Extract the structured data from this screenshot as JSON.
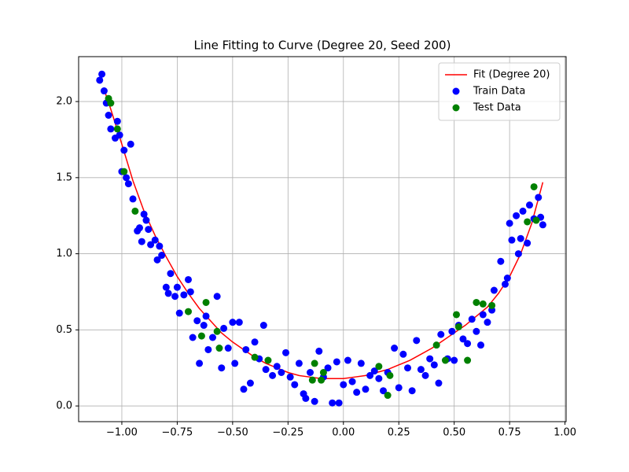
{
  "chart_data": {
    "type": "scatter",
    "title": "Line Fitting to Curve (Degree 20, Seed 200)",
    "xlim": [
      -1.195,
      1.005
    ],
    "ylim": [
      -0.103,
      2.295
    ],
    "xticks": [
      {
        "value": -1,
        "label": "−1.00"
      },
      {
        "value": -0.75,
        "label": "−0.75"
      },
      {
        "value": -0.5,
        "label": "−0.50"
      },
      {
        "value": -0.25,
        "label": "−0.25"
      },
      {
        "value": 0,
        "label": "0.00"
      },
      {
        "value": 0.25,
        "label": "0.25"
      },
      {
        "value": 0.5,
        "label": "0.50"
      },
      {
        "value": 0.75,
        "label": "0.75"
      },
      {
        "value": 1,
        "label": "1.00"
      }
    ],
    "yticks": [
      {
        "value": 0,
        "label": "0.0"
      },
      0.5,
      {
        "value": 1,
        "label": "1.0"
      },
      1.5,
      {
        "value": 2,
        "label": "2.0"
      }
    ],
    "grid": true,
    "legend": "upper right",
    "series": [
      {
        "name": "Fit (Degree 20)",
        "type": "line",
        "color": "#ff0000",
        "x": [
          -1.08,
          -1.05,
          -1.0,
          -0.95,
          -0.9,
          -0.85,
          -0.8,
          -0.75,
          -0.7,
          -0.65,
          -0.6,
          -0.55,
          -0.5,
          -0.45,
          -0.4,
          -0.35,
          -0.3,
          -0.25,
          -0.2,
          -0.15,
          -0.1,
          -0.05,
          0,
          0.05,
          0.1,
          0.15,
          0.2,
          0.25,
          0.3,
          0.35,
          0.4,
          0.45,
          0.5,
          0.55,
          0.6,
          0.65,
          0.7,
          0.75,
          0.8,
          0.85,
          0.9
        ],
        "values": [
          2.08,
          1.95,
          1.72,
          1.48,
          1.28,
          1.12,
          0.98,
          0.85,
          0.74,
          0.64,
          0.56,
          0.48,
          0.42,
          0.37,
          0.32,
          0.28,
          0.25,
          0.22,
          0.2,
          0.19,
          0.18,
          0.18,
          0.18,
          0.19,
          0.2,
          0.22,
          0.24,
          0.27,
          0.3,
          0.34,
          0.38,
          0.43,
          0.48,
          0.53,
          0.59,
          0.65,
          0.74,
          0.85,
          1.0,
          1.2,
          1.47
        ]
      },
      {
        "name": "Train Data",
        "type": "scatter",
        "color": "#0000ff",
        "x": [
          -1.09,
          -1.1,
          -1.08,
          -1.07,
          -1.06,
          -1.05,
          -1.03,
          -1.02,
          -1.01,
          -1.0,
          -0.99,
          -0.98,
          -0.97,
          -0.96,
          -0.95,
          -0.93,
          -0.92,
          -0.91,
          -0.9,
          -0.89,
          -0.88,
          -0.87,
          -0.85,
          -0.84,
          -0.83,
          -0.82,
          -0.8,
          -0.79,
          -0.78,
          -0.76,
          -0.75,
          -0.74,
          -0.72,
          -0.7,
          -0.69,
          -0.68,
          -0.66,
          -0.65,
          -0.63,
          -0.62,
          -0.61,
          -0.59,
          -0.57,
          -0.55,
          -0.54,
          -0.52,
          -0.5,
          -0.49,
          -0.47,
          -0.45,
          -0.44,
          -0.42,
          -0.4,
          -0.38,
          -0.36,
          -0.35,
          -0.32,
          -0.3,
          -0.28,
          -0.26,
          -0.24,
          -0.22,
          -0.2,
          -0.18,
          -0.17,
          -0.15,
          -0.13,
          -0.11,
          -0.09,
          -0.07,
          -0.05,
          -0.03,
          -0.02,
          0.0,
          0.02,
          0.04,
          0.06,
          0.08,
          0.1,
          0.12,
          0.14,
          0.16,
          0.18,
          0.2,
          0.23,
          0.25,
          0.27,
          0.29,
          0.31,
          0.33,
          0.35,
          0.37,
          0.39,
          0.41,
          0.43,
          0.44,
          0.47,
          0.49,
          0.5,
          0.52,
          0.54,
          0.56,
          0.58,
          0.6,
          0.62,
          0.63,
          0.65,
          0.67,
          0.68,
          0.71,
          0.73,
          0.74,
          0.75,
          0.76,
          0.78,
          0.79,
          0.8,
          0.81,
          0.83,
          0.84,
          0.86,
          0.88,
          0.89,
          0.9
        ],
        "values": [
          2.18,
          2.14,
          2.07,
          1.99,
          1.91,
          1.82,
          1.76,
          1.87,
          1.78,
          1.54,
          1.68,
          1.5,
          1.46,
          1.72,
          1.36,
          1.15,
          1.17,
          1.08,
          1.26,
          1.22,
          1.16,
          1.06,
          1.09,
          0.96,
          1.05,
          0.99,
          0.78,
          0.74,
          0.87,
          0.72,
          0.78,
          0.61,
          0.73,
          0.83,
          0.75,
          0.45,
          0.56,
          0.28,
          0.53,
          0.59,
          0.37,
          0.45,
          0.72,
          0.25,
          0.51,
          0.38,
          0.55,
          0.28,
          0.55,
          0.11,
          0.37,
          0.15,
          0.42,
          0.31,
          0.53,
          0.24,
          0.2,
          0.26,
          0.22,
          0.35,
          0.19,
          0.14,
          0.28,
          0.08,
          0.05,
          0.22,
          0.03,
          0.36,
          0.19,
          0.25,
          0.02,
          0.29,
          0.02,
          0.14,
          0.3,
          0.16,
          0.09,
          0.28,
          0.11,
          0.2,
          0.23,
          0.18,
          0.1,
          0.22,
          0.38,
          0.12,
          0.34,
          0.25,
          0.1,
          0.43,
          0.24,
          0.2,
          0.31,
          0.27,
          0.15,
          0.47,
          0.31,
          0.49,
          0.3,
          0.53,
          0.44,
          0.41,
          0.57,
          0.49,
          0.4,
          0.6,
          0.55,
          0.63,
          0.76,
          0.95,
          0.8,
          0.84,
          1.2,
          1.09,
          1.25,
          1.0,
          1.1,
          1.28,
          1.07,
          1.32,
          1.23,
          1.37,
          1.24,
          1.19
        ]
      },
      {
        "name": "Test Data",
        "type": "scatter",
        "color": "#008000",
        "x": [
          -1.06,
          -1.05,
          -1.02,
          -0.99,
          -0.94,
          -0.7,
          -0.64,
          -0.62,
          -0.57,
          -0.56,
          -0.4,
          -0.34,
          -0.14,
          -0.13,
          -0.1,
          -0.09,
          0.16,
          0.2,
          0.21,
          0.42,
          0.46,
          0.51,
          0.52,
          0.56,
          0.6,
          0.63,
          0.67,
          0.83,
          0.86,
          0.87
        ],
        "values": [
          2.02,
          1.99,
          1.82,
          1.54,
          1.28,
          0.62,
          0.46,
          0.68,
          0.49,
          0.38,
          0.32,
          0.3,
          0.17,
          0.28,
          0.17,
          0.22,
          0.26,
          0.07,
          0.2,
          0.4,
          0.3,
          0.6,
          0.52,
          0.3,
          0.68,
          0.67,
          0.66,
          1.21,
          1.44,
          1.22
        ]
      }
    ]
  }
}
